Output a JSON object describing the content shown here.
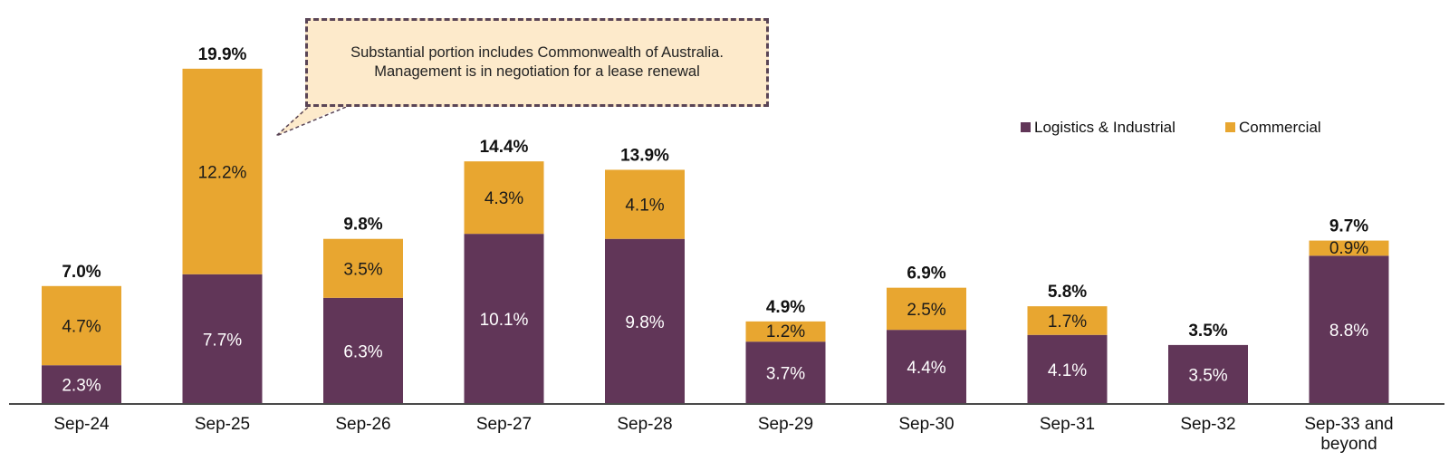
{
  "chart_data": {
    "type": "bar",
    "stacked": true,
    "categories": [
      "Sep-24",
      "Sep-25",
      "Sep-26",
      "Sep-27",
      "Sep-28",
      "Sep-29",
      "Sep-30",
      "Sep-31",
      "Sep-32",
      "Sep-33 and beyond"
    ],
    "series": [
      {
        "name": "Logistics & Industrial",
        "color": "#613658",
        "values": [
          2.3,
          7.7,
          6.3,
          10.1,
          9.8,
          3.7,
          4.4,
          4.1,
          3.5,
          8.8
        ],
        "labels": [
          "2.3%",
          "7.7%",
          "6.3%",
          "10.1%",
          "9.8%",
          "3.7%",
          "4.4%",
          "4.1%",
          "3.5%",
          "8.8%"
        ]
      },
      {
        "name": "Commercial",
        "color": "#e8a630",
        "values": [
          4.7,
          12.2,
          3.5,
          4.3,
          4.1,
          1.2,
          2.5,
          1.7,
          0,
          0.9
        ],
        "labels": [
          "4.7%",
          "12.2%",
          "3.5%",
          "4.3%",
          "4.1%",
          "1.2%",
          "2.5%",
          "1.7%",
          "",
          "0.9%"
        ]
      }
    ],
    "totals": [
      "7.0%",
      "19.9%",
      "9.8%",
      "14.4%",
      "13.9%",
      "4.9%",
      "6.9%",
      "5.8%",
      "3.5%",
      "9.7%"
    ],
    "ylim": [
      0,
      20
    ],
    "grid": false,
    "legend_position": "top-right",
    "annotations": [
      {
        "text": "Substantial portion includes Commonwealth of Australia. Management is in negotiation for a lease renewal",
        "target_category": "Sep-25"
      }
    ]
  }
}
